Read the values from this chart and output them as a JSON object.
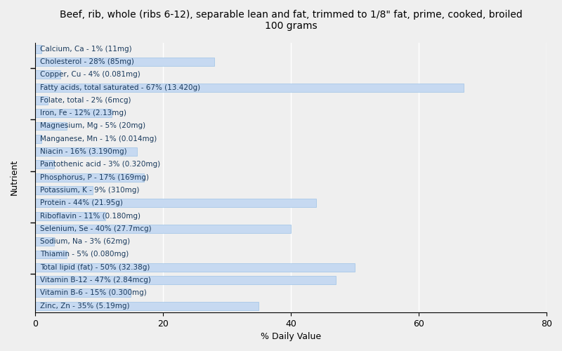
{
  "title": "Beef, rib, whole (ribs 6-12), separable lean and fat, trimmed to 1/8\" fat, prime, cooked, broiled\n100 grams",
  "xlabel": "% Daily Value",
  "ylabel": "Nutrient",
  "xlim": [
    0,
    80
  ],
  "bar_color": "#c6d9f1",
  "bar_edge_color": "#9dc3e6",
  "background_color": "#efefef",
  "text_color": "#1a3a5c",
  "nutrients": [
    {
      "label": "Calcium, Ca - 1% (11mg)",
      "value": 1
    },
    {
      "label": "Cholesterol - 28% (85mg)",
      "value": 28
    },
    {
      "label": "Copper, Cu - 4% (0.081mg)",
      "value": 4
    },
    {
      "label": "Fatty acids, total saturated - 67% (13.420g)",
      "value": 67
    },
    {
      "label": "Folate, total - 2% (6mcg)",
      "value": 2
    },
    {
      "label": "Iron, Fe - 12% (2.13mg)",
      "value": 12
    },
    {
      "label": "Magnesium, Mg - 5% (20mg)",
      "value": 5
    },
    {
      "label": "Manganese, Mn - 1% (0.014mg)",
      "value": 1
    },
    {
      "label": "Niacin - 16% (3.190mg)",
      "value": 16
    },
    {
      "label": "Pantothenic acid - 3% (0.320mg)",
      "value": 3
    },
    {
      "label": "Phosphorus, P - 17% (169mg)",
      "value": 17
    },
    {
      "label": "Potassium, K - 9% (310mg)",
      "value": 9
    },
    {
      "label": "Protein - 44% (21.95g)",
      "value": 44
    },
    {
      "label": "Riboflavin - 11% (0.180mg)",
      "value": 11
    },
    {
      "label": "Selenium, Se - 40% (27.7mcg)",
      "value": 40
    },
    {
      "label": "Sodium, Na - 3% (62mg)",
      "value": 3
    },
    {
      "label": "Thiamin - 5% (0.080mg)",
      "value": 5
    },
    {
      "label": "Total lipid (fat) - 50% (32.38g)",
      "value": 50
    },
    {
      "label": "Vitamin B-12 - 47% (2.84mcg)",
      "value": 47
    },
    {
      "label": "Vitamin B-6 - 15% (0.300mg)",
      "value": 15
    },
    {
      "label": "Zinc, Zn - 35% (5.19mg)",
      "value": 35
    }
  ],
  "title_fontsize": 10,
  "label_fontsize": 7.5,
  "tick_fontsize": 9,
  "axis_label_fontsize": 9,
  "bar_height": 0.65,
  "ytick_positions": [
    2.5,
    6.5,
    10.5,
    14.5,
    18.5
  ]
}
